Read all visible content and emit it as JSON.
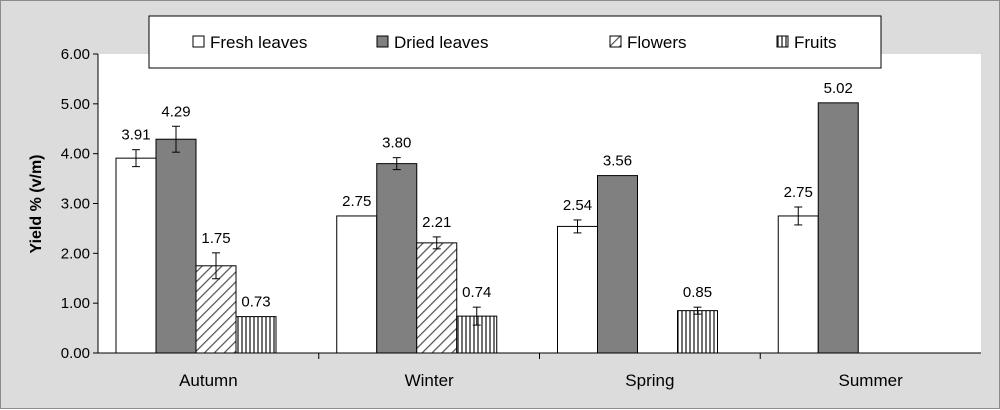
{
  "chart_data": {
    "type": "bar",
    "categories": [
      "Autumn",
      "Winter",
      "Spring",
      "Summer"
    ],
    "series": [
      {
        "name": "Fresh leaves",
        "values": [
          3.91,
          2.75,
          2.54,
          2.75
        ],
        "errors": [
          0.17,
          0,
          0.13,
          0.18
        ],
        "pattern": "white",
        "labels": [
          "3.91",
          "2.75",
          "2.54",
          "2.75"
        ]
      },
      {
        "name": "Dried leaves",
        "values": [
          4.29,
          3.8,
          3.56,
          5.02
        ],
        "errors": [
          0.26,
          0.12,
          0,
          0
        ],
        "pattern": "gray",
        "labels": [
          "4.29",
          "3.80",
          "3.56",
          "5.02"
        ]
      },
      {
        "name": "Flowers",
        "values": [
          1.75,
          2.21,
          null,
          null
        ],
        "errors": [
          0.26,
          0.12,
          0,
          0
        ],
        "pattern": "diagonal",
        "labels": [
          "1.75",
          "2.21",
          "",
          ""
        ]
      },
      {
        "name": "Fruits",
        "values": [
          0.73,
          0.74,
          0.85,
          null
        ],
        "errors": [
          0,
          0.18,
          0.07,
          0
        ],
        "pattern": "vertical",
        "labels": [
          "0.73",
          "0.74",
          "0.85",
          ""
        ]
      }
    ],
    "ylabel": "Yield % (v/m)",
    "xlabel": "",
    "ylim": [
      0,
      6
    ],
    "yticks": [
      "0.00",
      "1.00",
      "2.00",
      "3.00",
      "4.00",
      "5.00",
      "6.00"
    ],
    "grid": false,
    "legend_position": "top",
    "colors": {
      "background": "#dcdcdc",
      "plot_background": "#ffffff",
      "dried": "#808080",
      "edge": "#000000"
    }
  }
}
